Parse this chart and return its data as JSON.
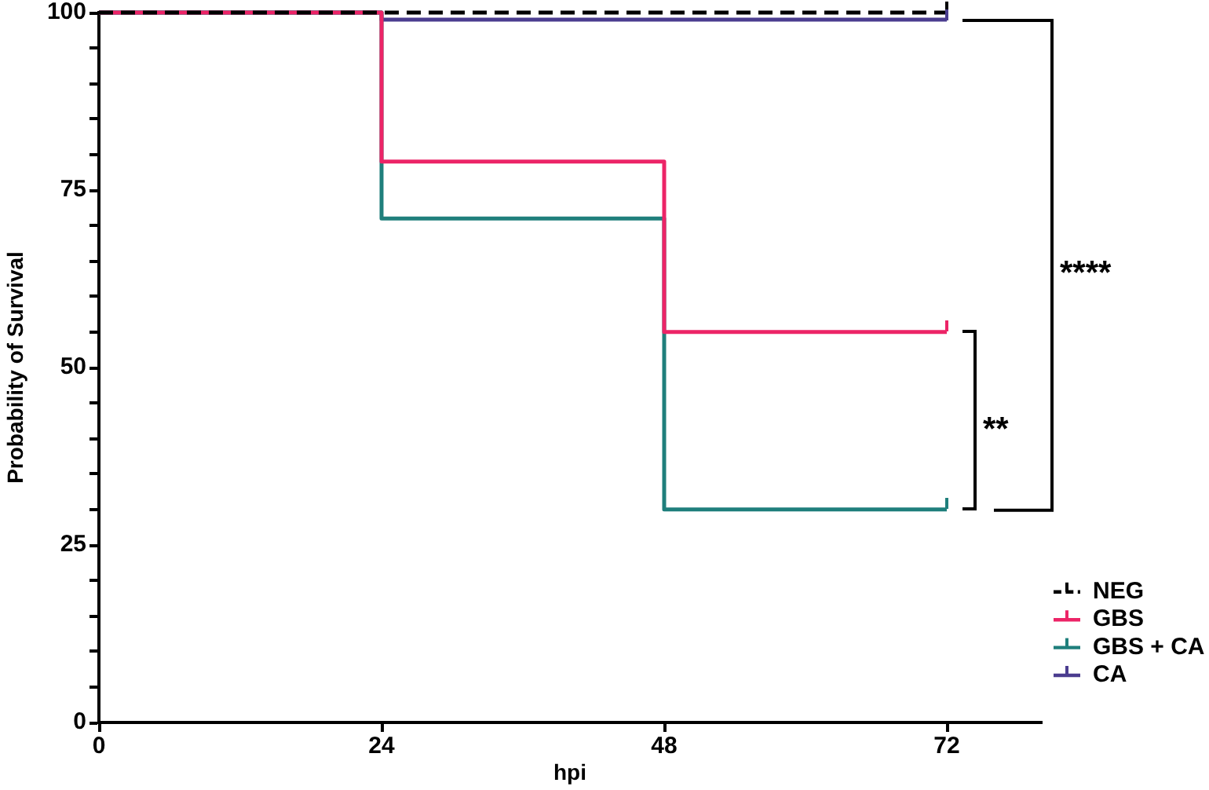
{
  "chart_data": {
    "type": "step",
    "xlabel": "hpi",
    "ylabel": "Probability of Survival",
    "x": [
      0,
      24,
      48,
      72
    ],
    "series": [
      {
        "name": "NEG",
        "color": "#000000",
        "line_style": "dashed",
        "values": [
          100,
          100,
          100,
          100
        ]
      },
      {
        "name": "GBS",
        "color": "#ec2467",
        "values": [
          100,
          79,
          55,
          55
        ]
      },
      {
        "name": "GBS + CA",
        "color": "#1f7f7c",
        "values": [
          100,
          71,
          30,
          30
        ]
      },
      {
        "name": "CA",
        "color": "#4b3d8f",
        "values": [
          100,
          99,
          99,
          99
        ]
      }
    ],
    "xlim": [
      0,
      80
    ],
    "xticks": [
      0,
      24,
      48,
      72
    ],
    "ylim": [
      0,
      100
    ],
    "yticks": [
      0,
      {
        "value": 5,
        "label": null
      },
      {
        "value": 10,
        "label": null
      },
      {
        "value": 15,
        "label": null
      },
      {
        "value": 20,
        "label": null
      },
      25,
      {
        "value": 30,
        "label": null
      },
      {
        "value": 35,
        "label": null
      },
      {
        "value": 40,
        "label": null
      },
      {
        "value": 45,
        "label": null
      },
      50,
      {
        "value": 55,
        "label": null
      },
      {
        "value": 60,
        "label": null
      },
      {
        "value": 65,
        "label": null
      },
      {
        "value": 70,
        "label": null
      },
      75,
      {
        "value": 80,
        "label": null
      },
      {
        "value": 85,
        "label": null
      },
      {
        "value": 90,
        "label": null
      },
      {
        "value": 95,
        "label": null
      },
      100
    ],
    "legend": "bottom right",
    "annotations": [
      "**",
      "****"
    ]
  }
}
